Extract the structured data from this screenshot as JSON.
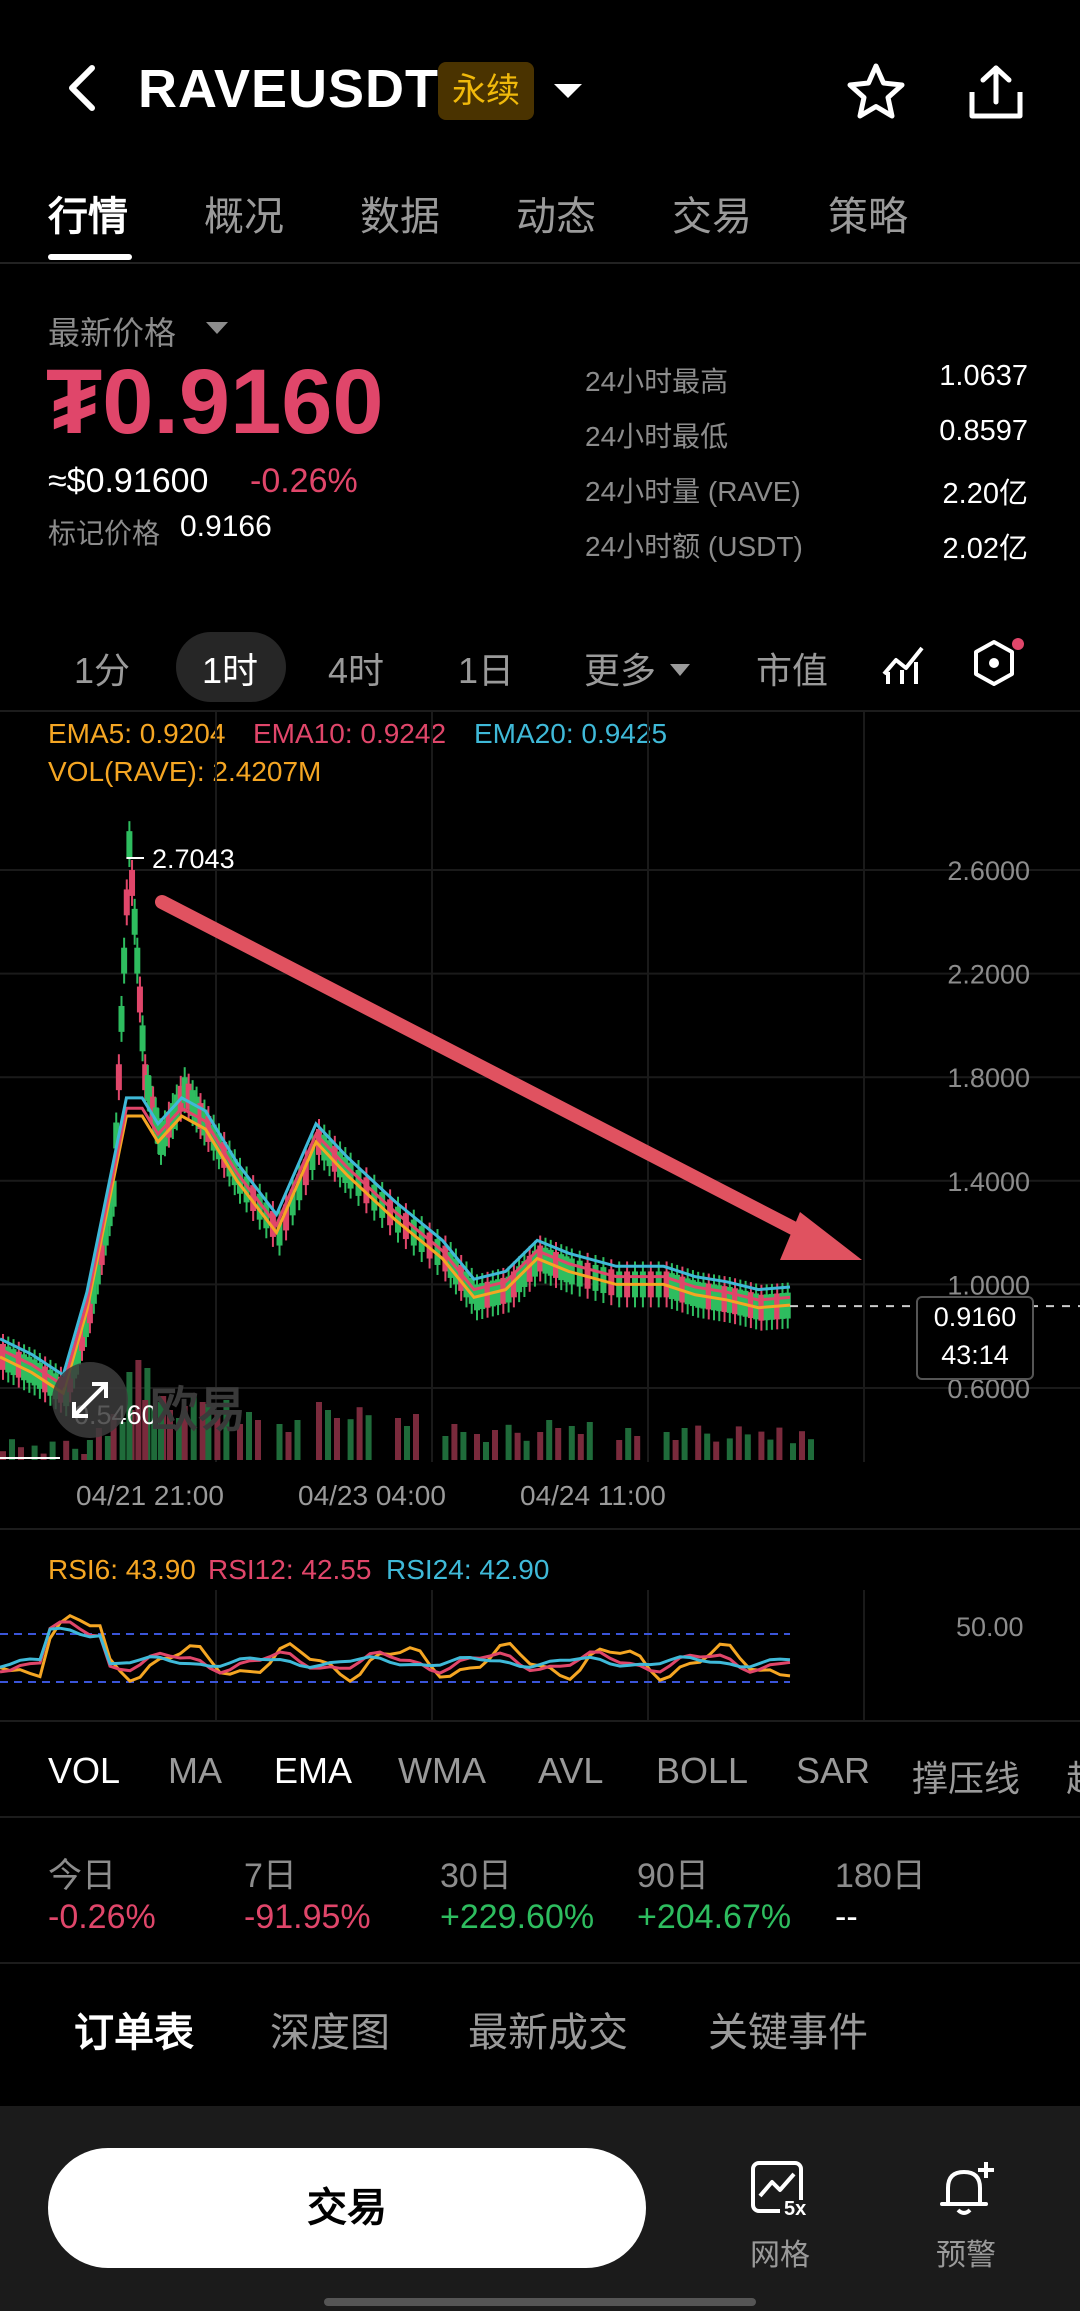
{
  "header": {
    "symbol": "RAVEUSDT",
    "badge": "永续",
    "icons": [
      "back-icon",
      "dropdown-icon",
      "star-icon",
      "share-icon"
    ]
  },
  "tabs": [
    "行情",
    "概况",
    "数据",
    "动态",
    "交易",
    "策略"
  ],
  "price": {
    "label": "最新价格",
    "last": "₮0.9160",
    "usd": "≈$0.91600",
    "change": "-0.26%",
    "mark_label": "标记价格",
    "mark_value": "0.9166"
  },
  "stats": [
    {
      "k": "24小时最高",
      "v": "1.0637"
    },
    {
      "k": "24小时最低",
      "v": "0.8597"
    },
    {
      "k": "24小时量 (RAVE)",
      "v": "2.20亿"
    },
    {
      "k": "24小时额 (USDT)",
      "v": "2.02亿"
    }
  ],
  "timeframes": [
    "1分",
    "1时",
    "4时",
    "1日",
    "更多",
    "市值"
  ],
  "chart_legend": {
    "ema5": "EMA5: 0.9204",
    "ema10": "EMA10: 0.9242",
    "ema20": "EMA20: 0.9425",
    "vol": "VOL(RAVE): 2.4207M",
    "max_label": "2.7043",
    "min_label": "0.5460",
    "last_price": "0.9160",
    "countdown": "43:14",
    "watermark": "欧易"
  },
  "chart_data": {
    "type": "line",
    "y_ticks": [
      "2.6000",
      "2.2000",
      "1.8000",
      "1.4000",
      "1.0000",
      "0.6000"
    ],
    "x_ticks": [
      "04/21 21:00",
      "04/23 04:00",
      "04/24 11:00"
    ],
    "price_path": [
      [
        0,
        0.72
      ],
      [
        4,
        0.66
      ],
      [
        8,
        0.58
      ],
      [
        11,
        0.9
      ],
      [
        14,
        1.35
      ],
      [
        16,
        2.7
      ],
      [
        18,
        1.8
      ],
      [
        20,
        1.55
      ],
      [
        23,
        1.75
      ],
      [
        26,
        1.6
      ],
      [
        30,
        1.4
      ],
      [
        35,
        1.2
      ],
      [
        40,
        1.55
      ],
      [
        44,
        1.42
      ],
      [
        50,
        1.25
      ],
      [
        56,
        1.1
      ],
      [
        60,
        0.95
      ],
      [
        64,
        0.98
      ],
      [
        68,
        1.1
      ],
      [
        72,
        1.05
      ],
      [
        78,
        1.0
      ],
      [
        84,
        1.0
      ],
      [
        88,
        0.96
      ],
      [
        92,
        0.94
      ],
      [
        96,
        0.91
      ],
      [
        100,
        0.92
      ]
    ],
    "ema5": "0.9204",
    "ema10": "0.9242",
    "ema20": "0.9425"
  },
  "rsi": {
    "rsi6": "RSI6: 43.90",
    "rsi12": "RSI12: 42.55",
    "rsi24": "RSI24: 42.90",
    "level": "50.00"
  },
  "indicators": [
    "VOL",
    "MA",
    "EMA",
    "WMA",
    "AVL",
    "BOLL",
    "SAR",
    "撑压线",
    "趋"
  ],
  "performance": [
    {
      "k": "今日",
      "v": "-0.26%",
      "dir": "down"
    },
    {
      "k": "7日",
      "v": "-91.95%",
      "dir": "down"
    },
    {
      "k": "30日",
      "v": "+229.60%",
      "dir": "up"
    },
    {
      "k": "90日",
      "v": "+204.67%",
      "dir": "up"
    },
    {
      "k": "180日",
      "v": "--",
      "dir": "none"
    }
  ],
  "order_tabs": [
    "订单表",
    "深度图",
    "最新成交",
    "关键事件"
  ],
  "bottom": {
    "trade": "交易",
    "grid": "网格",
    "grid_badge": "5x",
    "alert": "预警"
  },
  "colors": {
    "up": "#2ebd5f",
    "down": "#e0466a",
    "ema5": "#f5a623",
    "ema10": "#e0466a",
    "ema20": "#3fb9d8",
    "annotation_arrow": "#e05260"
  }
}
